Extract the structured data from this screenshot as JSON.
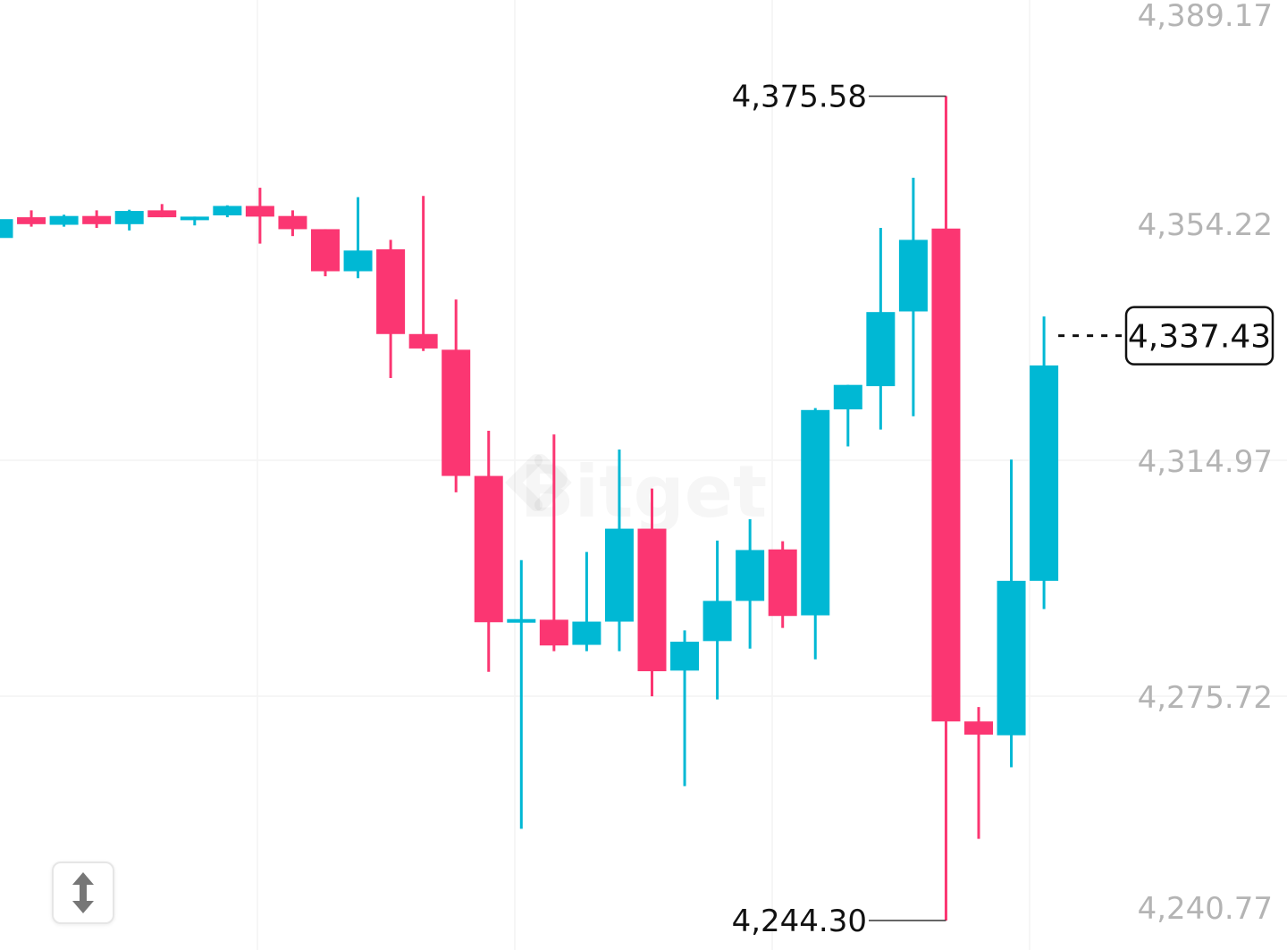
{
  "watermark": "Bitget",
  "colors": {
    "up": "#00b8d4",
    "down": "#fb3672",
    "grid": "#f3f3f3",
    "axis_text": "#b4b4b4"
  },
  "toggle": {
    "icon": "vertical-resize-arrows-icon"
  },
  "chart_data": {
    "type": "candlestick",
    "y_ticks": [
      "4,389.17",
      "4,354.22",
      "4,314.97",
      "4,275.72",
      "4,240.77"
    ],
    "ylim": [
      4239.6,
      4390.9
    ],
    "grid": true,
    "current_price": {
      "label": "4,337.43",
      "value": 4337.43
    },
    "annotations": {
      "high": {
        "label": "4,375.58",
        "value": 4375.58
      },
      "low": {
        "label": "4,244.30",
        "value": 4244.3
      }
    },
    "candles": [
      {
        "o": 4353.0,
        "h": 4355.2,
        "c": 4356.0,
        "l": 4350.3
      },
      {
        "o": 4356.3,
        "h": 4357.4,
        "c": 4355.2,
        "l": 4354.8
      },
      {
        "o": 4355.1,
        "h": 4356.7,
        "c": 4356.5,
        "l": 4354.8
      },
      {
        "o": 4356.5,
        "h": 4357.4,
        "c": 4355.2,
        "l": 4354.6
      },
      {
        "o": 4355.2,
        "h": 4357.5,
        "c": 4357.3,
        "l": 4354.2
      },
      {
        "o": 4357.4,
        "h": 4358.4,
        "c": 4356.3,
        "l": 4356.3
      },
      {
        "o": 4356.3,
        "h": 4356.4,
        "c": 4356.4,
        "l": 4355.0
      },
      {
        "o": 4356.6,
        "h": 4358.2,
        "c": 4358.1,
        "l": 4356.3
      },
      {
        "o": 4358.1,
        "h": 4361.0,
        "c": 4356.4,
        "l": 4352.1
      },
      {
        "o": 4356.5,
        "h": 4357.4,
        "c": 4354.4,
        "l": 4353.3
      },
      {
        "o": 4354.4,
        "h": 4354.4,
        "c": 4347.7,
        "l": 4346.9
      },
      {
        "o": 4347.7,
        "h": 4359.5,
        "c": 4351.0,
        "l": 4346.6
      },
      {
        "o": 4351.2,
        "h": 4352.7,
        "c": 4337.7,
        "l": 4330.7
      },
      {
        "o": 4337.7,
        "h": 4359.7,
        "c": 4335.4,
        "l": 4335.0
      },
      {
        "o": 4335.2,
        "h": 4343.2,
        "c": 4315.1,
        "l": 4312.5
      },
      {
        "o": 4315.1,
        "h": 4322.3,
        "c": 4291.8,
        "l": 4283.9
      },
      {
        "o": 4291.8,
        "h": 4301.7,
        "c": 4292.3,
        "l": 4258.9
      },
      {
        "o": 4292.2,
        "h": 4321.7,
        "c": 4288.1,
        "l": 4287.2
      },
      {
        "o": 4288.2,
        "h": 4303.0,
        "c": 4291.9,
        "l": 4287.2
      },
      {
        "o": 4291.9,
        "h": 4319.3,
        "c": 4306.7,
        "l": 4287.2
      },
      {
        "o": 4306.7,
        "h": 4313.1,
        "c": 4284.0,
        "l": 4280.0
      },
      {
        "o": 4284.1,
        "h": 4290.5,
        "c": 4288.7,
        "l": 4265.7
      },
      {
        "o": 4288.8,
        "h": 4304.8,
        "c": 4295.2,
        "l": 4279.5
      },
      {
        "o": 4295.2,
        "h": 4308.2,
        "c": 4303.3,
        "l": 4287.6
      },
      {
        "o": 4303.4,
        "h": 4304.7,
        "c": 4292.8,
        "l": 4290.9
      },
      {
        "o": 4292.9,
        "h": 4325.9,
        "c": 4325.6,
        "l": 4285.9
      },
      {
        "o": 4325.7,
        "h": 4329.6,
        "c": 4329.6,
        "l": 4319.8
      },
      {
        "o": 4329.4,
        "h": 4354.6,
        "c": 4341.2,
        "l": 4322.5
      },
      {
        "o": 4341.3,
        "h": 4362.6,
        "c": 4352.7,
        "l": 4324.6
      },
      {
        "o": 4354.5,
        "h": 4375.6,
        "c": 4276.0,
        "l": 4244.3
      },
      {
        "o": 4276.0,
        "h": 4278.3,
        "c": 4273.9,
        "l": 4257.3
      },
      {
        "o": 4273.8,
        "h": 4317.7,
        "c": 4298.4,
        "l": 4268.7
      },
      {
        "o": 4298.4,
        "h": 4340.5,
        "c": 4332.7,
        "l": 4293.9
      }
    ]
  }
}
